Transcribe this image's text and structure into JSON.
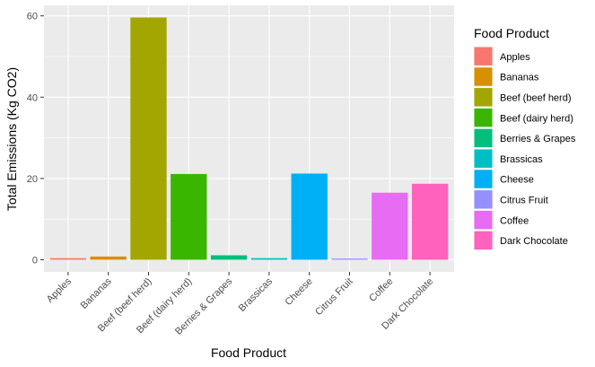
{
  "chart_data": {
    "type": "bar",
    "title": "",
    "xlabel": "Food Product",
    "ylabel": "Total Emissions (Kg CO2)",
    "categories": [
      "Apples",
      "Bananas",
      "Beef (beef herd)",
      "Beef (dairy herd)",
      "Berries & Grapes",
      "Brassicas",
      "Cheese",
      "Citrus Fruit",
      "Coffee",
      "Dark Chocolate"
    ],
    "values": [
      0.4,
      0.8,
      59.6,
      21.1,
      1.1,
      0.4,
      21.2,
      0.3,
      16.5,
      18.7
    ],
    "colors": [
      "#F8766D",
      "#D89000",
      "#A3A500",
      "#39B600",
      "#00BF7D",
      "#00BFC4",
      "#00B0F6",
      "#9590FF",
      "#E76BF3",
      "#FF62BC"
    ],
    "yticks": [
      0,
      20,
      40,
      60
    ],
    "ylim": [
      -2.98,
      62.58
    ],
    "grid": true,
    "legend": {
      "title": "Food Product",
      "position": "right"
    }
  }
}
